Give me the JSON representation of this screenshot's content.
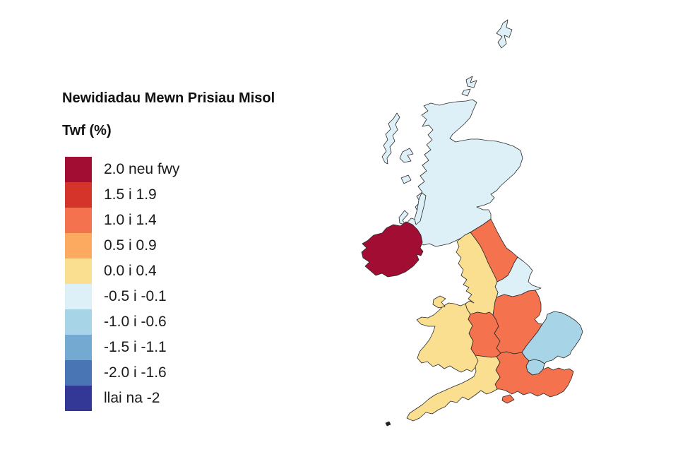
{
  "title": "Newidiadau Mewn Prisiau Misol",
  "legend": {
    "heading": "Twf (%)",
    "items": [
      {
        "label": "2.0 neu fwy",
        "color": "#a10d33"
      },
      {
        "label": "1.5 i 1.9",
        "color": "#d5342b"
      },
      {
        "label": "1.0 i 1.4",
        "color": "#f4724d"
      },
      {
        "label": "0.5 i 0.9",
        "color": "#fbaa60"
      },
      {
        "label": "0.0 i 0.4",
        "color": "#fbdf90"
      },
      {
        "label": "-0.5 i -0.1",
        "color": "#def0f7"
      },
      {
        "label": "-1.0 i -0.6",
        "color": "#a7d4e6"
      },
      {
        "label": "-1.5 i -1.1",
        "color": "#74aad1"
      },
      {
        "label": "-2.0 i -1.6",
        "color": "#4a75b5"
      },
      {
        "label": "llai na -2",
        "color": "#333795"
      }
    ]
  },
  "map": {
    "outline_color": "#2a2a2a",
    "background": "#ffffff",
    "regions": [
      {
        "id": "scotland",
        "name": "Scotland",
        "band": "-0.5 i -0.1",
        "color": "#def0f7"
      },
      {
        "id": "northern-ireland",
        "name": "Northern Ireland",
        "band": "2.0 neu fwy",
        "color": "#a10d33"
      },
      {
        "id": "north-east",
        "name": "North East",
        "band": "1.0 i 1.4",
        "color": "#f4724d"
      },
      {
        "id": "north-west",
        "name": "North West",
        "band": "0.0 i 0.4",
        "color": "#fbdf90"
      },
      {
        "id": "yorkshire-humber",
        "name": "Yorkshire and The Humber",
        "band": "-0.5 i -0.1",
        "color": "#def0f7"
      },
      {
        "id": "east-midlands",
        "name": "East Midlands",
        "band": "1.0 i 1.4",
        "color": "#f4724d"
      },
      {
        "id": "west-midlands",
        "name": "West Midlands",
        "band": "1.0 i 1.4",
        "color": "#f4724d"
      },
      {
        "id": "wales",
        "name": "Wales",
        "band": "0.0 i 0.4",
        "color": "#fbdf90"
      },
      {
        "id": "east-of-england",
        "name": "East of England",
        "band": "-1.0 i -0.6",
        "color": "#a7d4e6"
      },
      {
        "id": "london",
        "name": "London",
        "band": "-1.0 i -0.6",
        "color": "#a7d4e6"
      },
      {
        "id": "south-east",
        "name": "South East",
        "band": "1.0 i 1.4",
        "color": "#f4724d"
      },
      {
        "id": "south-west",
        "name": "South West",
        "band": "0.0 i 0.4",
        "color": "#fbdf90"
      }
    ]
  }
}
